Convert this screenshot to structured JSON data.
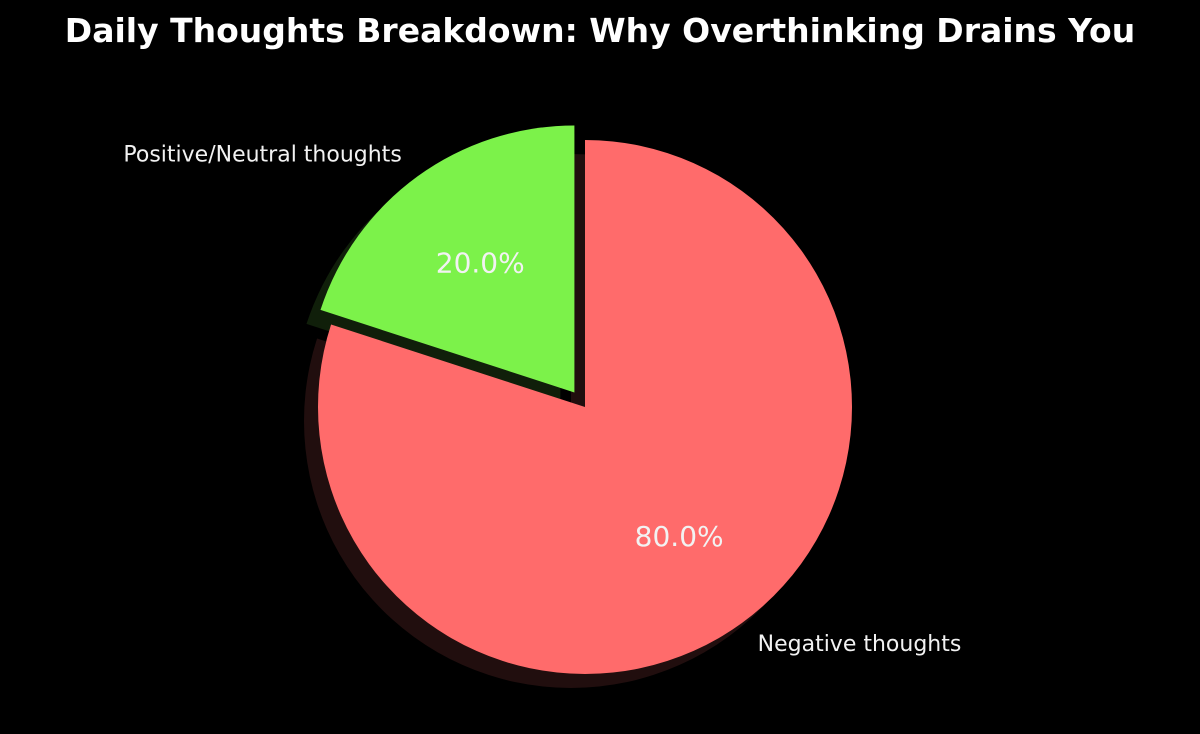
{
  "chart_data": {
    "type": "pie",
    "title": "Daily Thoughts Breakdown: Why Overthinking Drains You",
    "start_angle_deg": 90,
    "direction": "clockwise",
    "shadow": true,
    "slices": [
      {
        "label": "Negative thoughts",
        "value": 80.0,
        "pct_label": "80.0%",
        "color": "#ff6b6b",
        "exploded": false
      },
      {
        "label": "Positive/Neutral thoughts",
        "value": 20.0,
        "pct_label": "20.0%",
        "color": "#7cf24a",
        "exploded": true
      }
    ]
  }
}
